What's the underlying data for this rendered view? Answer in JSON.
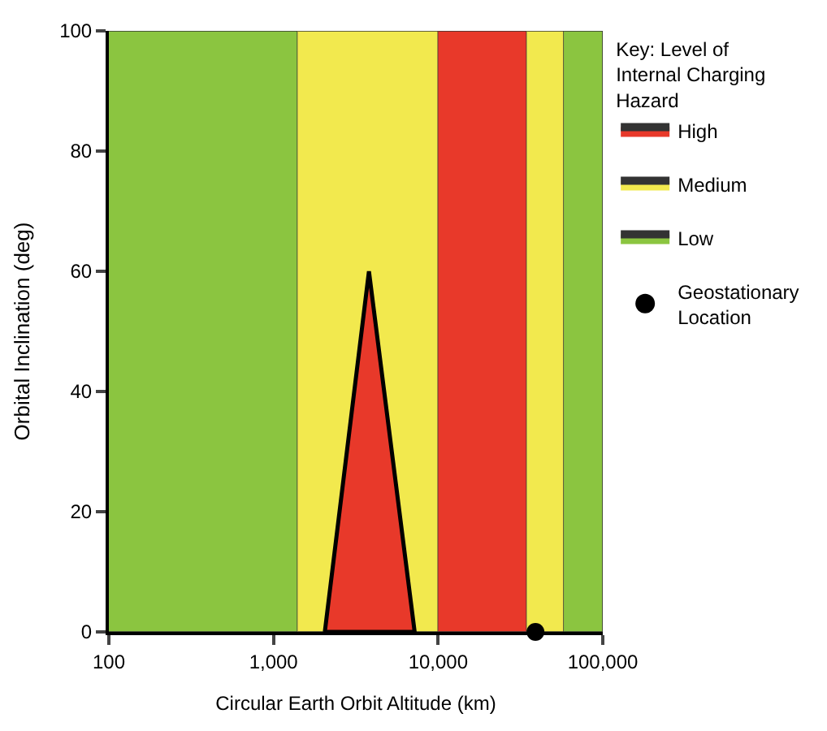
{
  "chart_data": {
    "type": "area",
    "xlabel": "Circular Earth Orbit Altitude (km)",
    "ylabel": "Orbital Inclination (deg)",
    "legend_title": "Key: Level of Internal Charging Hazard",
    "log": "x",
    "xlim": [
      100,
      100000
    ],
    "xticks": [
      {
        "value": 100,
        "label": "100"
      },
      {
        "value": 1000,
        "label": "1,000"
      },
      {
        "value": 10000,
        "label": "10,000"
      },
      {
        "value": 100000,
        "label": "100,000"
      }
    ],
    "ylim": [
      0,
      100
    ],
    "yticks": [
      0,
      20,
      40,
      60,
      80,
      100
    ],
    "legend": "right",
    "series": [
      {
        "name": "Low",
        "color": "#8bc540",
        "x": [
          100,
          1400
        ],
        "values": [
          100,
          100
        ]
      },
      {
        "name": "Medium",
        "color": "#f2e94e",
        "x": [
          1400,
          10000
        ],
        "values": [
          100,
          100
        ]
      },
      {
        "name": "High",
        "color": "#e8392a",
        "x": [
          10000,
          34500
        ],
        "values": [
          100,
          100
        ]
      },
      {
        "color": "#f2e94e",
        "x": [
          34500,
          58000
        ],
        "values": [
          100,
          100
        ]
      },
      {
        "color": "#8bc540",
        "x": [
          58000,
          100000
        ],
        "values": [
          100,
          100
        ]
      },
      {
        "color": "#e8392a",
        "x": [
          2050,
          3800,
          7200
        ],
        "values": [
          0,
          60,
          0
        ]
      },
      {
        "type": "scatter",
        "name": "Geostationary Location",
        "color": "#000000",
        "marker": "circle",
        "x": [
          39000
        ],
        "values": [
          0
        ]
      }
    ]
  }
}
